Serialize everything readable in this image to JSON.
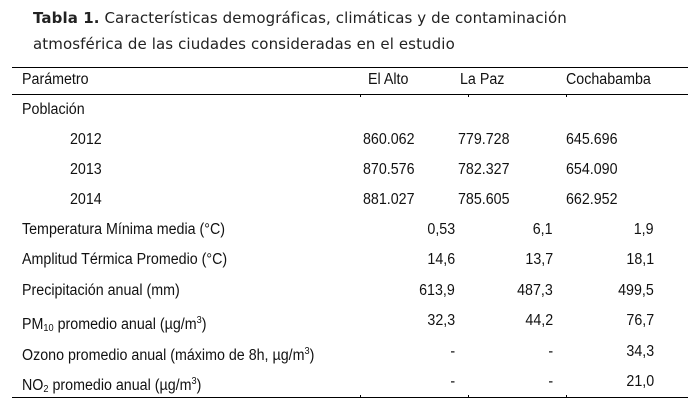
{
  "caption": {
    "label": "Tabla 1.",
    "line1": "Características demográficas, climáticas y de contaminación",
    "line2": "atmosférica de las ciudades consideradas en el estudio"
  },
  "header": {
    "param": "Parámetro",
    "cols": [
      "El Alto",
      "La Paz",
      "Cochabamba"
    ]
  },
  "population": {
    "label": "Población",
    "rows": [
      {
        "year": "2012",
        "values": [
          "860.062",
          "779.728",
          "645.696"
        ]
      },
      {
        "year": "2013",
        "values": [
          "870.576",
          "782.327",
          "654.090"
        ]
      },
      {
        "year": "2014",
        "values": [
          "881.027",
          "785.605",
          "662.952"
        ]
      }
    ]
  },
  "rows": [
    {
      "label": "Temperatura Mínima media (°C)",
      "values": [
        "0,53",
        "6,1",
        "1,9"
      ]
    },
    {
      "label": "Amplitud Térmica Promedio (°C)",
      "values": [
        "14,6",
        "13,7",
        "18,1"
      ]
    },
    {
      "label": "Precipitación anual (mm)",
      "values": [
        "613,9",
        "487,3",
        "499,5"
      ]
    },
    {
      "label_pre": "PM",
      "label_sub": "10",
      "label_mid": " promedio anual (µg/m",
      "label_sup": "3",
      "label_post": ")",
      "values": [
        "32,3",
        "44,2",
        "76,7"
      ]
    },
    {
      "label_pre": "Ozono promedio anual (máximo de 8h, µg/m",
      "label_sup": "3",
      "label_post": ")",
      "values": [
        "-",
        "-",
        "34,3"
      ]
    },
    {
      "label_pre": "NO",
      "label_sub": "2",
      "label_mid": " promedio anual (µg/m",
      "label_sup": "3",
      "label_post": ")",
      "values": [
        "-",
        "-",
        "21,0"
      ]
    }
  ]
}
